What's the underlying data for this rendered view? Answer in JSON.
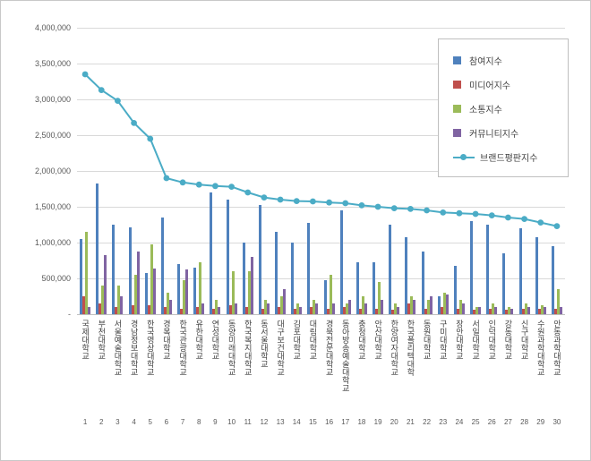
{
  "chart": {
    "y_axis": {
      "labels": [
        "4,000,000",
        "3,500,000",
        "3,000,000",
        "2,500,000",
        "2,000,000",
        "1,500,000",
        "1,000,000",
        "500,000",
        "-"
      ],
      "max": 4000000,
      "step": 500000
    }
  },
  "chart_data": {
    "type": "bar",
    "title": "",
    "xlabel": "",
    "ylabel": "",
    "ylim": [
      0,
      4000000
    ],
    "grid": true,
    "legend_position": "top-right",
    "categories": [
      "국제대학교",
      "부천대학교",
      "서울예술대학교",
      "경남정보대학교",
      "한국영상대학교",
      "경복대학교",
      "한국관광대학교",
      "유한대학교",
      "연성대학교",
      "동양미래대학교",
      "한국복지대학교",
      "동서울대학교",
      "대구보건대학교",
      "김포대학교",
      "대림대학교",
      "경북전문대학교",
      "동아방송예술대학교",
      "충청대학교",
      "안산대학교",
      "한양여자대학교",
      "한국폴리텍대학",
      "동원대학교",
      "구미대학교",
      "장안대학교",
      "서일대학교",
      "인덕대학교",
      "강동대학교",
      "신구대학교",
      "수원과학대학교",
      "안동과학대학교"
    ],
    "category_numbers": [
      1,
      2,
      3,
      4,
      5,
      6,
      7,
      8,
      9,
      10,
      11,
      12,
      13,
      14,
      15,
      16,
      17,
      18,
      19,
      20,
      21,
      22,
      23,
      24,
      25,
      26,
      27,
      28,
      29,
      30
    ],
    "series": [
      {
        "name": "참여지수",
        "type": "bar",
        "color": "#4F81BD",
        "values": [
          1050000,
          1820000,
          1250000,
          1210000,
          580000,
          1350000,
          700000,
          650000,
          1700000,
          1600000,
          1000000,
          1520000,
          1150000,
          1000000,
          1270000,
          480000,
          1450000,
          730000,
          730000,
          1250000,
          1080000,
          880000,
          250000,
          670000,
          1300000,
          1250000,
          850000,
          1200000,
          1080000,
          950000
        ]
      },
      {
        "name": "미디어지수",
        "type": "bar",
        "color": "#C0504D",
        "values": [
          250000,
          150000,
          100000,
          120000,
          130000,
          100000,
          80000,
          100000,
          80000,
          120000,
          100000,
          80000,
          100000,
          80000,
          100000,
          80000,
          100000,
          80000,
          80000,
          60000,
          150000,
          80000,
          100000,
          80000,
          60000,
          80000,
          60000,
          80000,
          70000,
          80000
        ]
      },
      {
        "name": "소통지수",
        "type": "bar",
        "color": "#9BBB59",
        "values": [
          1150000,
          400000,
          400000,
          550000,
          980000,
          300000,
          480000,
          720000,
          200000,
          600000,
          600000,
          200000,
          250000,
          150000,
          200000,
          550000,
          150000,
          250000,
          450000,
          150000,
          250000,
          200000,
          300000,
          200000,
          100000,
          150000,
          100000,
          150000,
          120000,
          350000
        ]
      },
      {
        "name": "커뮤니티지수",
        "type": "bar",
        "color": "#8064A2",
        "values": [
          100000,
          830000,
          250000,
          870000,
          640000,
          200000,
          620000,
          150000,
          100000,
          150000,
          800000,
          150000,
          350000,
          100000,
          150000,
          150000,
          200000,
          150000,
          200000,
          100000,
          200000,
          250000,
          280000,
          150000,
          100000,
          100000,
          80000,
          100000,
          100000,
          100000
        ]
      },
      {
        "name": "브랜드평판지수",
        "type": "line",
        "color": "#4BACC6",
        "values": [
          3350000,
          3130000,
          2980000,
          2670000,
          2450000,
          1900000,
          1840000,
          1810000,
          1790000,
          1780000,
          1700000,
          1630000,
          1600000,
          1580000,
          1575000,
          1560000,
          1550000,
          1520000,
          1500000,
          1480000,
          1470000,
          1450000,
          1420000,
          1410000,
          1400000,
          1380000,
          1350000,
          1330000,
          1280000,
          1230000
        ]
      }
    ]
  }
}
